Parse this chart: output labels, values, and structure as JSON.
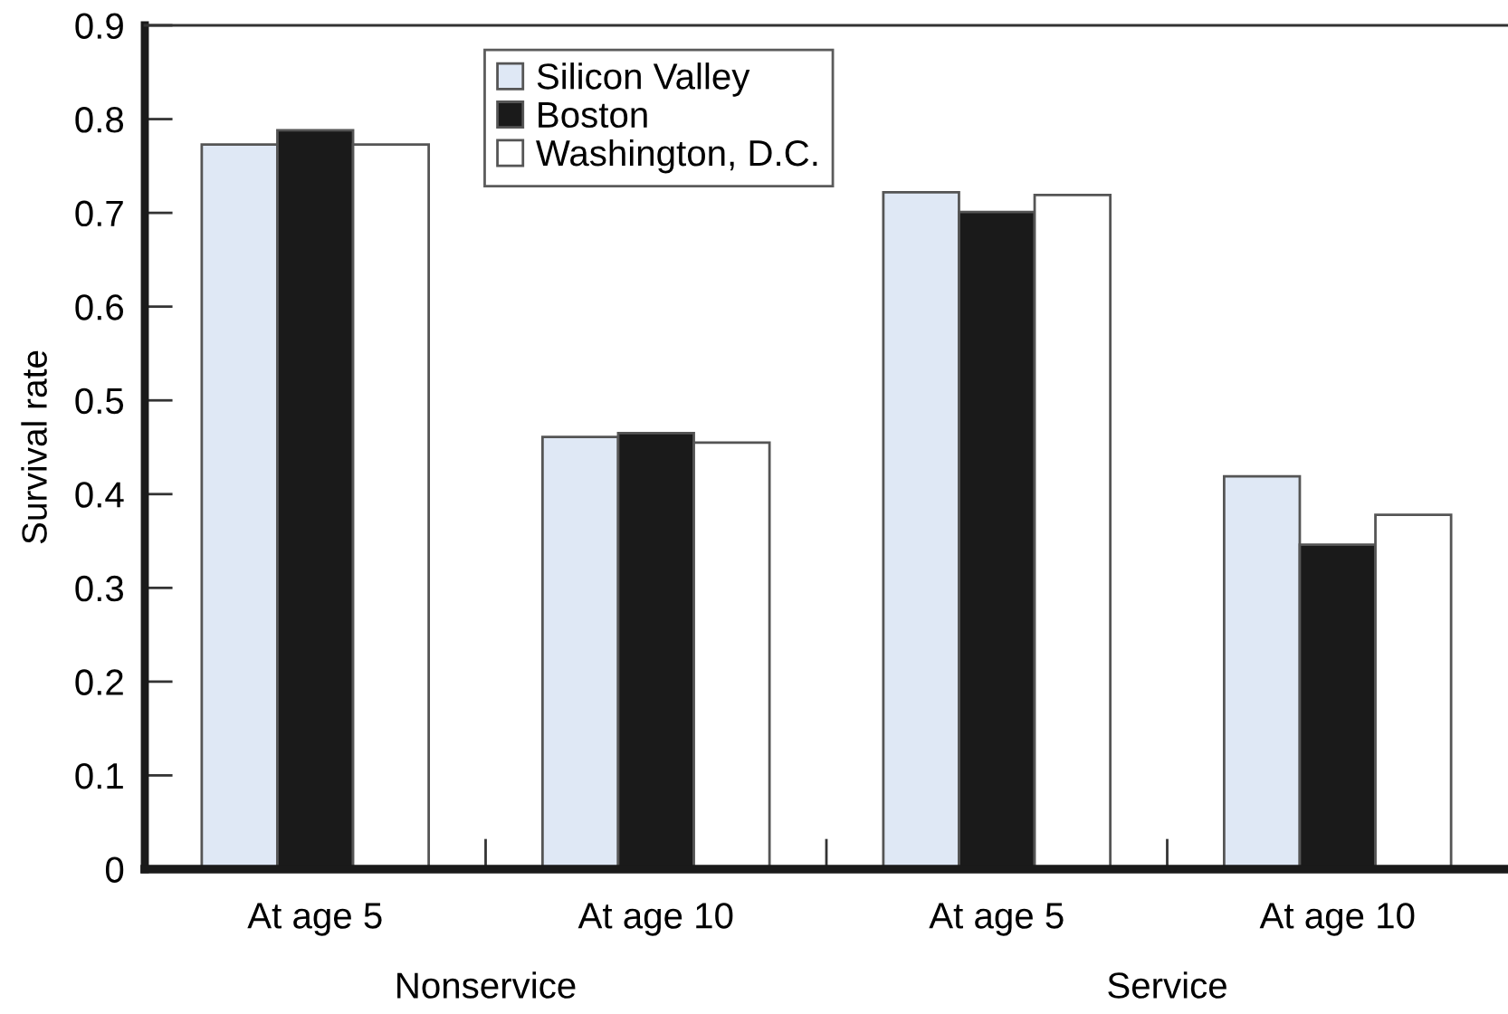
{
  "chart_data": {
    "type": "bar",
    "ylabel": "Survival rate",
    "categories": [
      "At age 5",
      "At age 10",
      "At age 5",
      "At age 10"
    ],
    "series": [
      {
        "name": "Silicon Valley",
        "color": "#dfe8f5",
        "values": [
          0.773,
          0.461,
          0.722,
          0.419
        ]
      },
      {
        "name": "Boston",
        "color": "#1a1a1a",
        "values": [
          0.788,
          0.465,
          0.701,
          0.346
        ]
      },
      {
        "name": "Washington, D.C.",
        "color": "#ffffff",
        "values": [
          0.773,
          0.455,
          0.719,
          0.378
        ]
      }
    ],
    "ylim": [
      0,
      0.9
    ],
    "yticks": [
      0,
      0.1,
      0.2,
      0.3,
      0.4,
      0.5,
      0.6,
      0.7,
      0.8,
      0.9
    ],
    "legend": "top",
    "annotations": [
      "Nonservice",
      "Service"
    ]
  }
}
